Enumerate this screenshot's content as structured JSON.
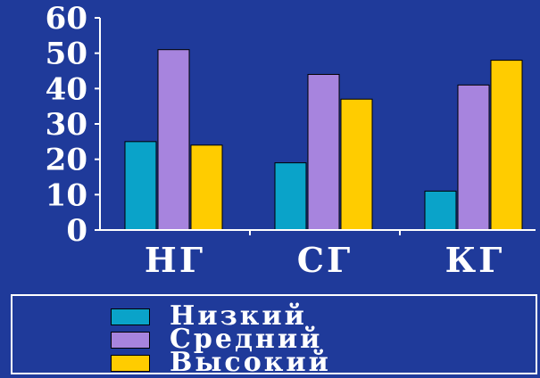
{
  "chart_data": {
    "type": "bar",
    "categories": [
      "НГ",
      "СГ",
      "КГ"
    ],
    "series": [
      {
        "name": "Низкий",
        "values": [
          25,
          19,
          11
        ],
        "color": "#0aa3c9"
      },
      {
        "name": "Средний",
        "values": [
          51,
          44,
          41
        ],
        "color": "#a784de"
      },
      {
        "name": "Высокий",
        "values": [
          24,
          37,
          48
        ],
        "color": "#ffcc00"
      }
    ],
    "yticks": [
      0,
      10,
      20,
      30,
      40,
      50,
      60
    ],
    "ylim": [
      0,
      60
    ],
    "title": "",
    "xlabel": "",
    "ylabel": "",
    "legend": "bottom",
    "grid": false,
    "colors": {
      "background": "#1f3a9a",
      "axis": "#ffffff",
      "text": "#ffffff"
    }
  }
}
